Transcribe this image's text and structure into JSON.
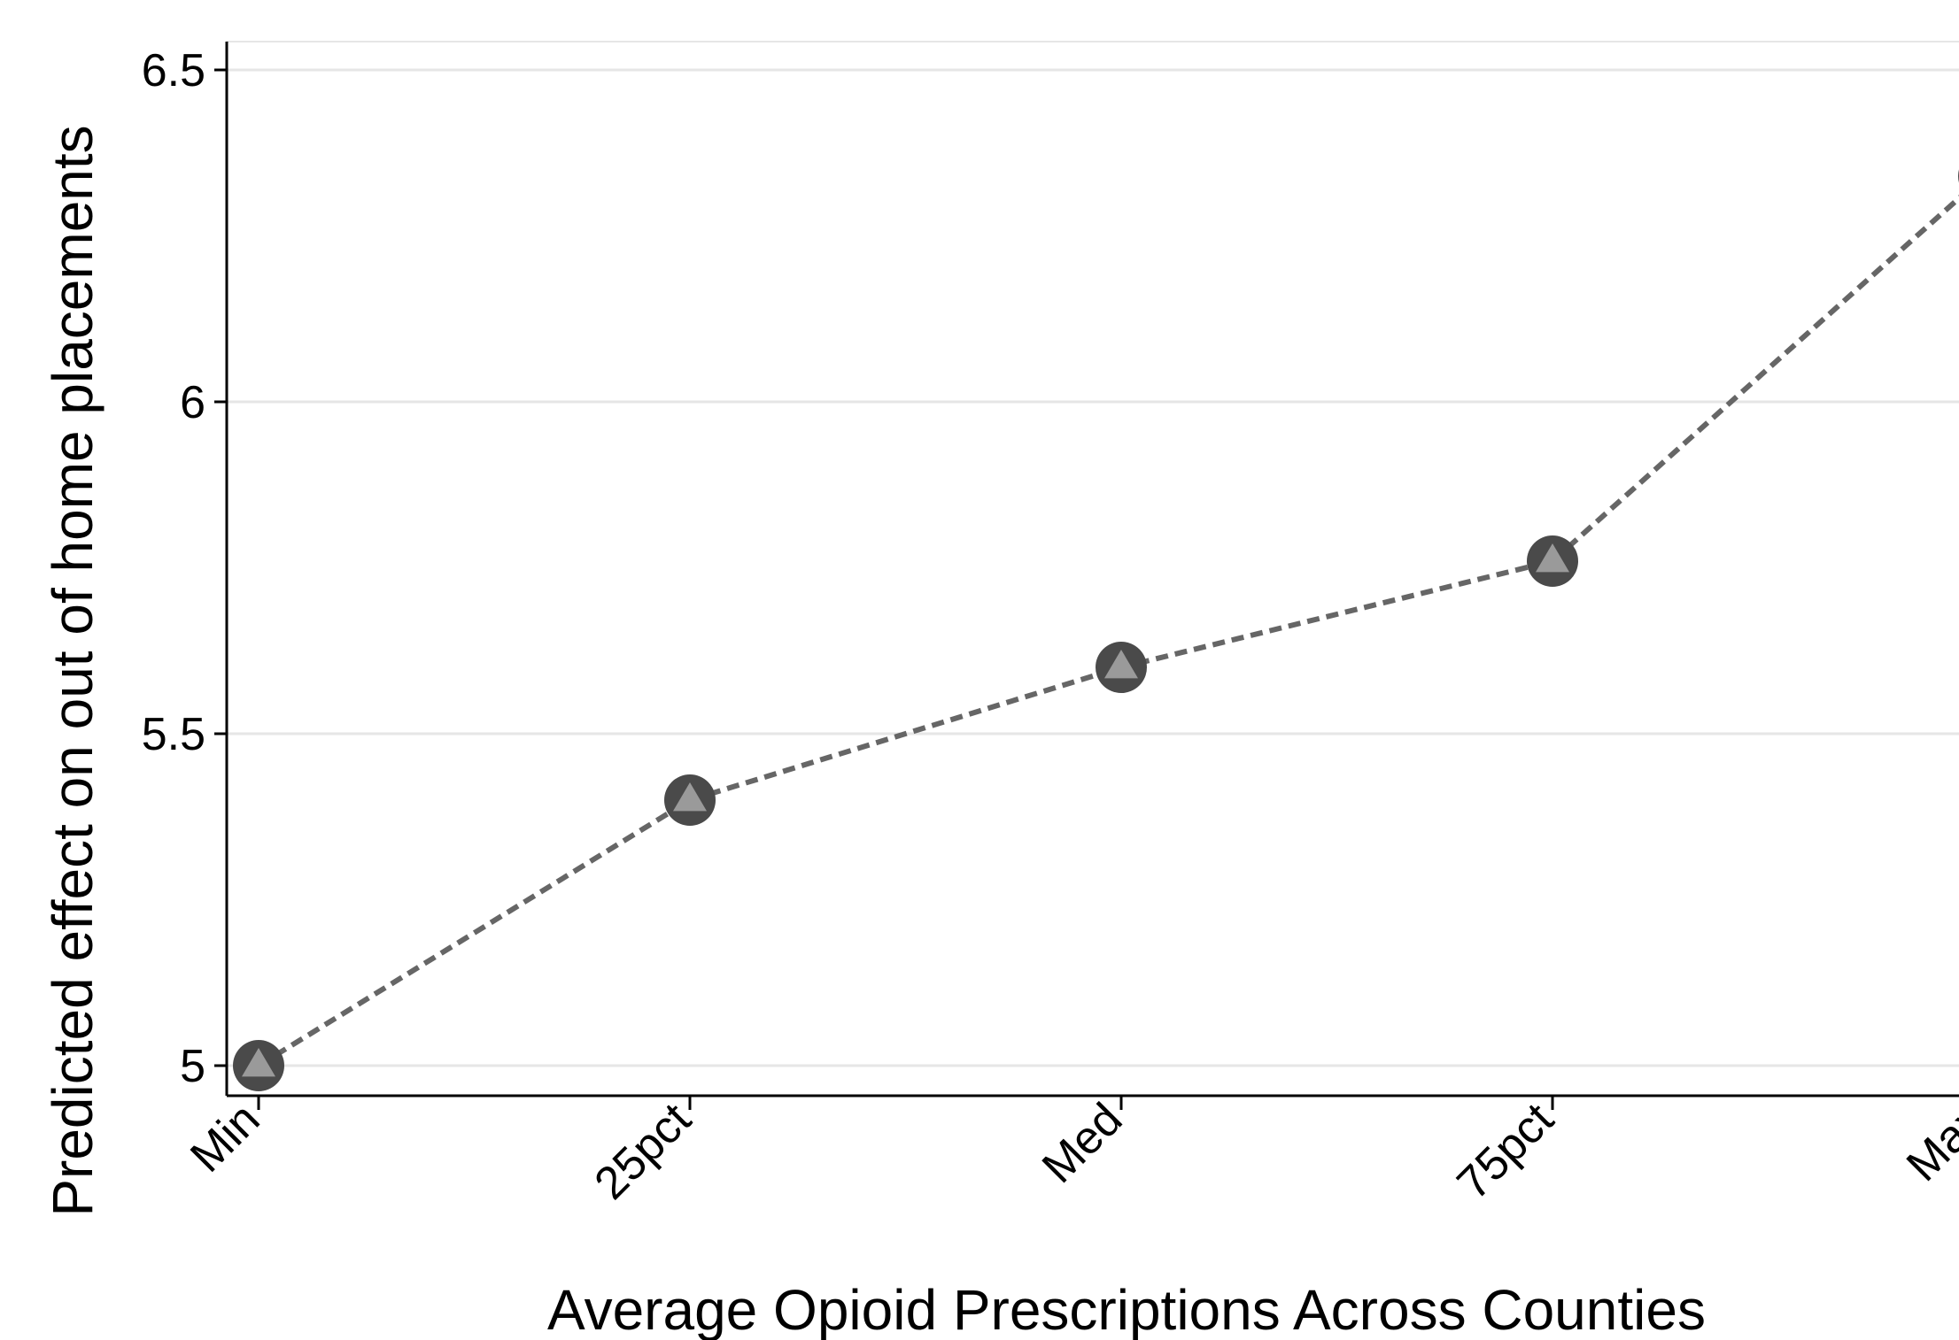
{
  "chart_data": {
    "type": "line",
    "title": "",
    "xlabel": "Average Opioid Prescriptions Across Counties",
    "ylabel": "Predicted effect on out of home placements",
    "categories": [
      "Min",
      "25pct",
      "Med",
      "75pct",
      "Max"
    ],
    "series": [
      {
        "values": [
          5.0,
          5.4,
          5.6,
          5.76,
          6.34
        ]
      }
    ],
    "ylim": [
      4.95,
      6.54
    ],
    "yticks": [
      5,
      5.5,
      6,
      6.5
    ],
    "ytick_labels": [
      "5",
      "5.5",
      "6",
      "6.5"
    ],
    "grid": true,
    "legend": "none",
    "marker": "triangle-in-circle",
    "line_style": "dashed",
    "colors": {
      "line": "#666666",
      "marker_outer": "#4a4a4a",
      "marker_inner": "#9a9a9a",
      "grid": "#e6e6e6",
      "axis": "#000000"
    }
  }
}
